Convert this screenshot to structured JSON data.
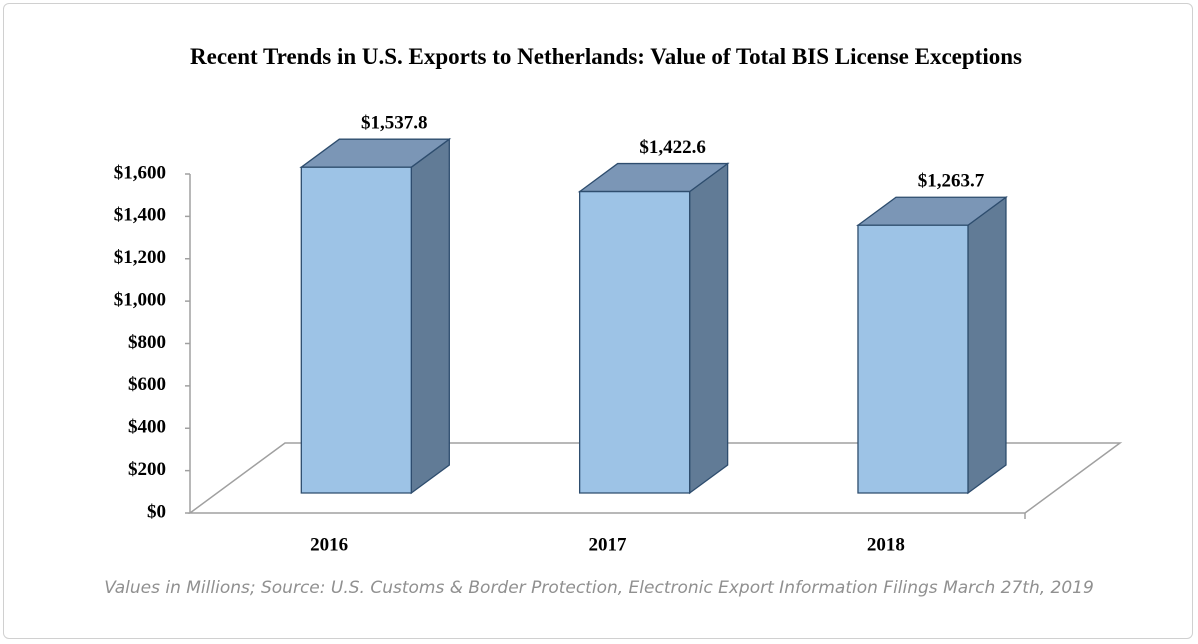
{
  "chart_data": {
    "type": "bar3d",
    "title": "Recent Trends in U.S. Exports to Netherlands: Value of Total BIS License Exceptions",
    "categories": [
      "2016",
      "2017",
      "2018"
    ],
    "values": [
      1537.8,
      1422.6,
      1263.7
    ],
    "value_labels": [
      "$1,537.8",
      "$1,422.6",
      "$1,263.7"
    ],
    "color": "#9dc3e6",
    "ylim": [
      0,
      1600
    ],
    "yticks": [
      {
        "value": 0,
        "label": "$0"
      },
      {
        "value": 200,
        "label": "$200"
      },
      {
        "value": 400,
        "label": "$400"
      },
      {
        "value": 600,
        "label": "$600"
      },
      {
        "value": 800,
        "label": "$800"
      },
      {
        "value": 1000,
        "label": "$1,000"
      },
      {
        "value": 1200,
        "label": "$1,200"
      },
      {
        "value": 1400,
        "label": "$1,400"
      },
      {
        "value": 1600,
        "label": "$1,600"
      }
    ],
    "note": "Values in Millions; Source: U.S. Customs & Border Protection, Electronic Export Information Filings March 27th, 2019"
  }
}
